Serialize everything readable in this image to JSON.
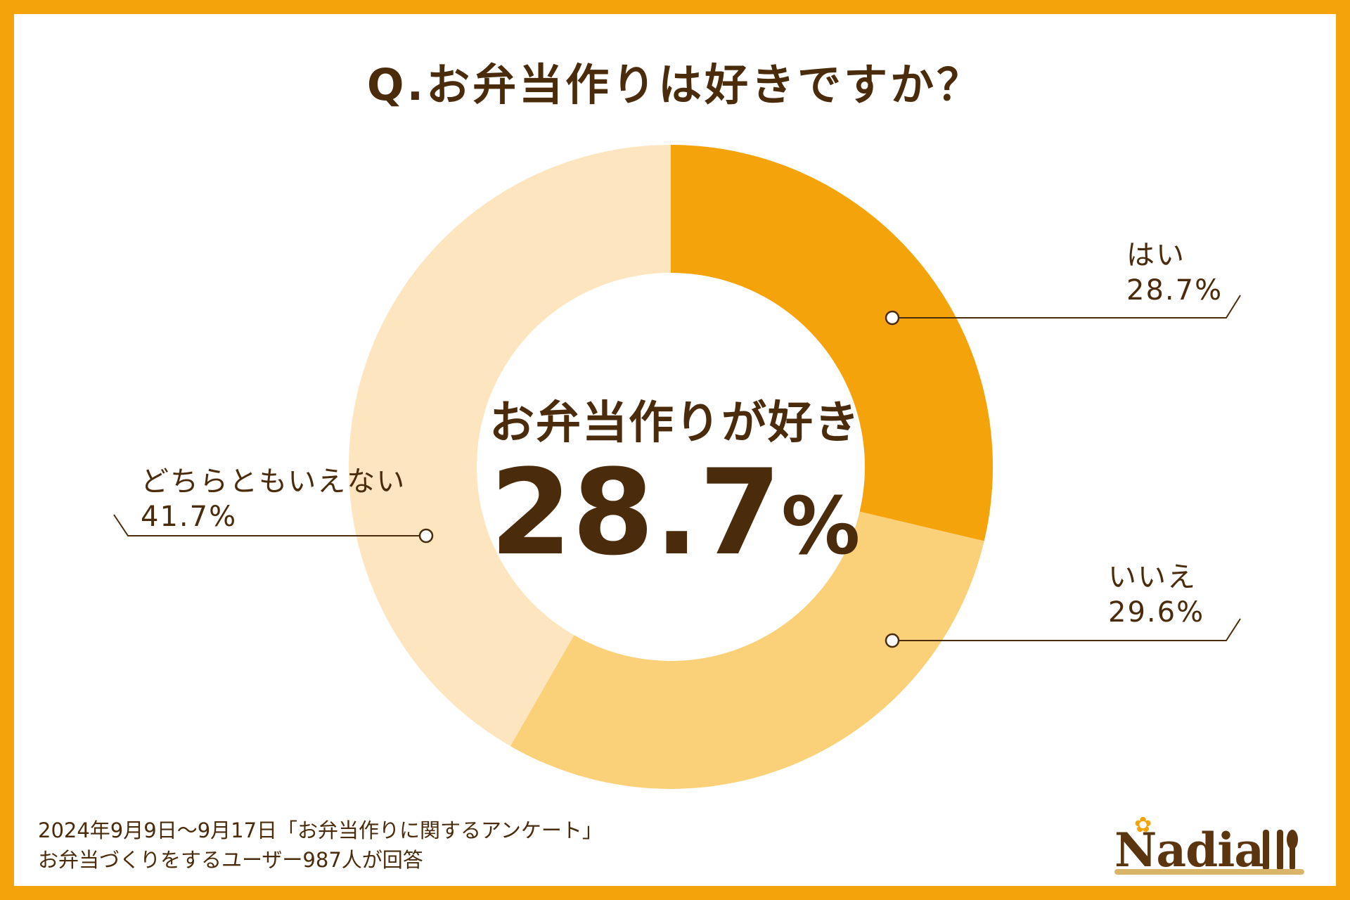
{
  "title": "Q.お弁当作りは好きですか？",
  "center": {
    "caption": "お弁当作りが好き",
    "value": "28.7",
    "unit": "%"
  },
  "chart_data": {
    "type": "pie",
    "categories": [
      "はい",
      "いいえ",
      "どちらともいえない"
    ],
    "values": [
      28.7,
      29.6,
      41.7
    ],
    "value_labels": [
      "28.7%",
      "29.6%",
      "41.7%"
    ],
    "colors": [
      "#f5a30a",
      "#fad079",
      "#fde6bf"
    ],
    "donut": true
  },
  "footer": {
    "line1": "2024年9月9日〜9月17日「お弁当作りに関するアンケート」",
    "line2": "お弁当づくりをするユーザー987人が回答"
  },
  "logo": {
    "text": "Nadia",
    "icon": "fork-spoon-icon",
    "star_icon": "star-icon"
  }
}
